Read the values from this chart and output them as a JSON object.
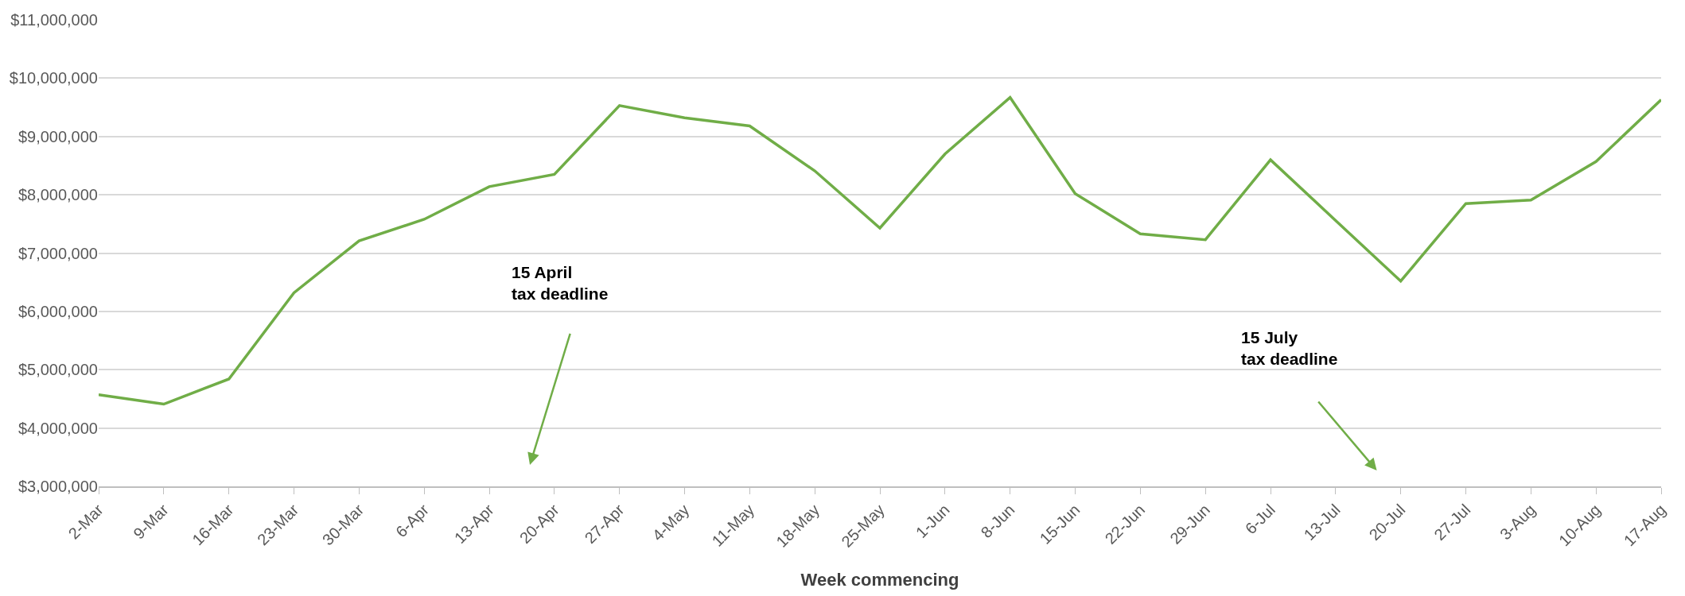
{
  "chart_data": {
    "type": "line",
    "xlabel": "Week commencing",
    "categories": [
      "2-Mar",
      "9-Mar",
      "16-Mar",
      "23-Mar",
      "30-Mar",
      "6-Apr",
      "13-Apr",
      "20-Apr",
      "27-Apr",
      "4-May",
      "11-May",
      "18-May",
      "25-May",
      "1-Jun",
      "8-Jun",
      "15-Jun",
      "22-Jun",
      "29-Jun",
      "6-Jul",
      "13-Jul",
      "20-Jul",
      "27-Jul",
      "3-Aug",
      "10-Aug",
      "17-Aug"
    ],
    "series": [
      {
        "color": "#70ad47",
        "values": [
          4570000,
          4410000,
          4840000,
          6320000,
          7210000,
          7580000,
          8140000,
          8350000,
          9530000,
          9320000,
          9180000,
          8410000,
          7430000,
          8700000,
          9670000,
          8020000,
          7330000,
          7230000,
          8600000,
          7560000,
          6520000,
          7850000,
          7910000,
          8570000,
          9630000
        ]
      }
    ],
    "ylim": [
      3000000,
      11000000
    ],
    "yticks": [
      {
        "value": 3000000,
        "label": "$3,000,000"
      },
      {
        "value": 4000000,
        "label": "$4,000,000"
      },
      {
        "value": 5000000,
        "label": "$5,000,000"
      },
      {
        "value": 6000000,
        "label": "$6,000,000"
      },
      {
        "value": 7000000,
        "label": "$7,000,000"
      },
      {
        "value": 8000000,
        "label": "$8,000,000"
      },
      {
        "value": 9000000,
        "label": "$9,000,000"
      },
      {
        "value": 10000000,
        "label": "$10,000,000"
      },
      {
        "value": 11000000,
        "label": "$11,000,000"
      }
    ],
    "grid": "y",
    "marker": "none",
    "line_style": "solid",
    "annotations": [
      "15 April\ntax deadline",
      "15 July\ntax deadline"
    ]
  }
}
